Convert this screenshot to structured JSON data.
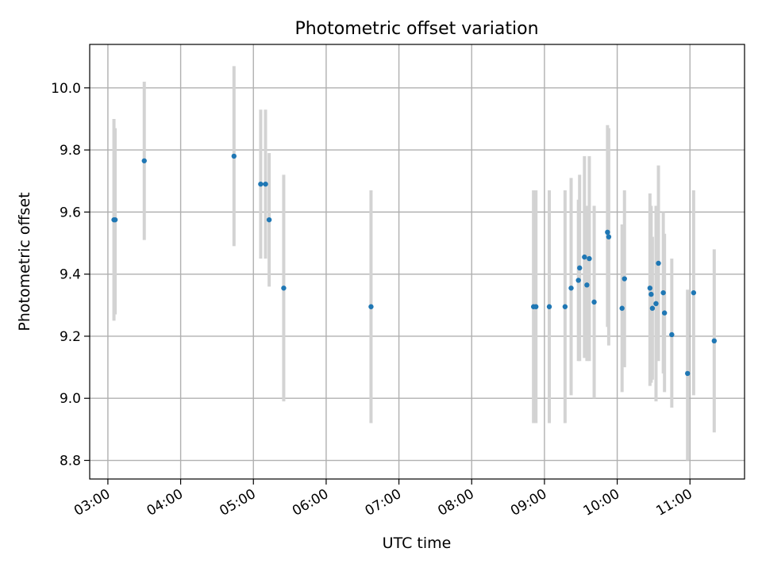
{
  "chart_data": {
    "type": "scatter",
    "title": "Photometric offset variation",
    "xlabel": "UTC time",
    "ylabel": "Photometric offset",
    "x_unit": "hh:mm UTC",
    "xlim": [
      "02:45",
      "11:45"
    ],
    "ylim": [
      8.74,
      10.14
    ],
    "xticks": [
      "03:00",
      "04:00",
      "05:00",
      "06:00",
      "07:00",
      "08:00",
      "09:00",
      "10:00",
      "11:00"
    ],
    "yticks": [
      8.8,
      9.0,
      9.2,
      9.4,
      9.6,
      9.8,
      10.0
    ],
    "ytick_labels": [
      "8.8",
      "9.0",
      "9.2",
      "9.4",
      "9.6",
      "9.8",
      "10.0"
    ],
    "grid": true,
    "colors": {
      "point": "#1f77b4",
      "errorbar": "#d3d3d3",
      "grid": "#b0b0b0"
    },
    "series": [
      {
        "points": [
          {
            "x": "03:05",
            "y": 9.575,
            "lo": 9.25,
            "hi": 9.9
          },
          {
            "x": "03:06",
            "y": 9.575,
            "lo": 9.27,
            "hi": 9.87
          },
          {
            "x": "03:30",
            "y": 9.765,
            "lo": 9.51,
            "hi": 10.02
          },
          {
            "x": "04:44",
            "y": 9.78,
            "lo": 9.49,
            "hi": 10.07
          },
          {
            "x": "05:06",
            "y": 9.69,
            "lo": 9.45,
            "hi": 9.93
          },
          {
            "x": "05:10",
            "y": 9.69,
            "lo": 9.45,
            "hi": 9.93
          },
          {
            "x": "05:13",
            "y": 9.575,
            "lo": 9.36,
            "hi": 9.79
          },
          {
            "x": "05:25",
            "y": 9.355,
            "lo": 8.99,
            "hi": 9.72
          },
          {
            "x": "06:37",
            "y": 9.295,
            "lo": 8.92,
            "hi": 9.67
          },
          {
            "x": "08:51",
            "y": 9.295,
            "lo": 8.92,
            "hi": 9.67
          },
          {
            "x": "08:53",
            "y": 9.295,
            "lo": 8.92,
            "hi": 9.67
          },
          {
            "x": "09:04",
            "y": 9.295,
            "lo": 8.92,
            "hi": 9.67
          },
          {
            "x": "09:17",
            "y": 9.295,
            "lo": 8.92,
            "hi": 9.67
          },
          {
            "x": "09:22",
            "y": 9.355,
            "lo": 9.01,
            "hi": 9.71
          },
          {
            "x": "09:28",
            "y": 9.38,
            "lo": 9.12,
            "hi": 9.64
          },
          {
            "x": "09:29",
            "y": 9.42,
            "lo": 9.12,
            "hi": 9.72
          },
          {
            "x": "09:33",
            "y": 9.455,
            "lo": 9.13,
            "hi": 9.78
          },
          {
            "x": "09:35",
            "y": 9.365,
            "lo": 9.12,
            "hi": 9.62
          },
          {
            "x": "09:37",
            "y": 9.45,
            "lo": 9.12,
            "hi": 9.78
          },
          {
            "x": "09:41",
            "y": 9.31,
            "lo": 9.0,
            "hi": 9.62
          },
          {
            "x": "09:52",
            "y": 9.535,
            "lo": 9.23,
            "hi": 9.88
          },
          {
            "x": "09:53",
            "y": 9.52,
            "lo": 9.17,
            "hi": 9.87
          },
          {
            "x": "10:04",
            "y": 9.29,
            "lo": 9.02,
            "hi": 9.56
          },
          {
            "x": "10:06",
            "y": 9.385,
            "lo": 9.1,
            "hi": 9.67
          },
          {
            "x": "10:27",
            "y": 9.355,
            "lo": 9.04,
            "hi": 9.66
          },
          {
            "x": "10:28",
            "y": 9.335,
            "lo": 9.05,
            "hi": 9.62
          },
          {
            "x": "10:29",
            "y": 9.29,
            "lo": 9.06,
            "hi": 9.52
          },
          {
            "x": "10:32",
            "y": 9.305,
            "lo": 8.99,
            "hi": 9.62
          },
          {
            "x": "10:34",
            "y": 9.435,
            "lo": 9.12,
            "hi": 9.75
          },
          {
            "x": "10:38",
            "y": 9.34,
            "lo": 9.08,
            "hi": 9.6
          },
          {
            "x": "10:39",
            "y": 9.275,
            "lo": 9.02,
            "hi": 9.53
          },
          {
            "x": "10:45",
            "y": 9.205,
            "lo": 8.97,
            "hi": 9.45
          },
          {
            "x": "10:58",
            "y": 9.08,
            "lo": 8.8,
            "hi": 9.35
          },
          {
            "x": "11:03",
            "y": 9.34,
            "lo": 9.01,
            "hi": 9.67
          },
          {
            "x": "11:20",
            "y": 9.185,
            "lo": 8.89,
            "hi": 9.48
          }
        ]
      }
    ]
  }
}
